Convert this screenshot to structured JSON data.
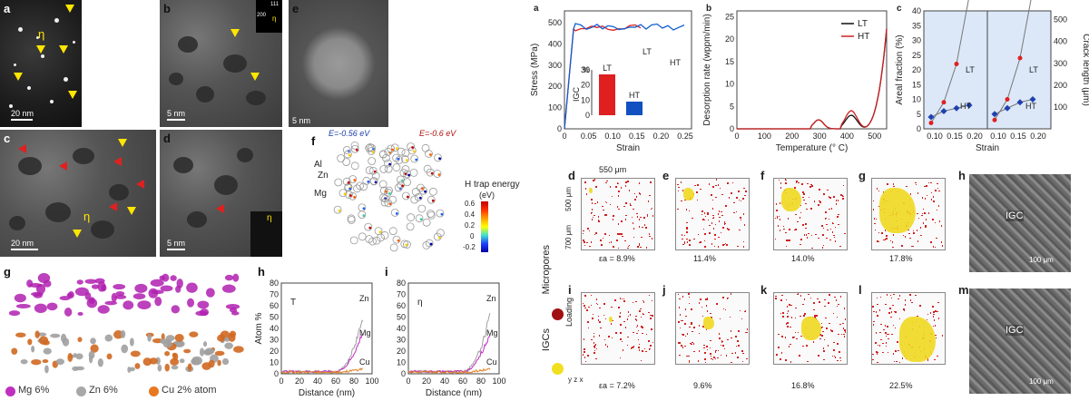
{
  "left": {
    "panels": {
      "a": "a",
      "b": "b",
      "c": "c",
      "d": "d",
      "e": "e",
      "f": "f",
      "g": "g",
      "h": "h",
      "i": "i"
    },
    "scale": {
      "a": "20 nm",
      "b": "5 nm",
      "c": "20 nm",
      "d": "5 nm",
      "e": "5 nm"
    },
    "eta": "η",
    "tau": "T",
    "diff_b": {
      "a": "200",
      "b": "111",
      "c": "111"
    },
    "f_energy": {
      "low": "E=-0.56 eV",
      "high": "E=-0.6 eV",
      "label": "H trap energy",
      "unit": "(eV)",
      "ticks": [
        "0.6",
        "0.4",
        "0.2",
        "0",
        "-0.2"
      ]
    },
    "f_atoms": [
      "Al",
      "Zn",
      "Mg"
    ],
    "g_legend": [
      "Mg 6%",
      "Zn 6%",
      "Cu 2% atom"
    ],
    "h_plot": {
      "title": "T",
      "ylabel": "Atom %",
      "xlabel": "Distance (nm)",
      "yticks": [
        "0",
        "10",
        "20",
        "30",
        "40",
        "50",
        "60",
        "70",
        "80"
      ],
      "xticks": [
        "0",
        "20",
        "40",
        "60",
        "80",
        "100"
      ],
      "labels": [
        "Zn",
        "Mg",
        "Cu"
      ]
    },
    "i_plot": {
      "title": "η",
      "xlabel": "Distance (nm)",
      "yticks": [
        "0",
        "10",
        "20",
        "30",
        "40",
        "50",
        "60",
        "70",
        "80"
      ],
      "xticks": [
        "0",
        "20",
        "40",
        "60",
        "80",
        "100"
      ],
      "labels": [
        "Zn",
        "Mg",
        "Cu"
      ]
    }
  },
  "right": {
    "panel_a": {
      "label": "a",
      "ylabel": "Stress (MPa)",
      "xlabel": "Strain",
      "yticks": [
        "0",
        "100",
        "200",
        "300",
        "400",
        "500"
      ],
      "xticks": [
        "0",
        "0.05",
        "0.10",
        "0.15",
        "0.20",
        "0.25"
      ],
      "curve_labels": [
        "LT",
        "HT"
      ],
      "inset": {
        "unit": "%",
        "ylabel": "IGC",
        "yticks": [
          "0",
          "10",
          "20",
          "30"
        ],
        "bars": [
          {
            "name": "LT",
            "value": 27
          },
          {
            "name": "HT",
            "value": 9
          }
        ]
      }
    },
    "panel_b": {
      "label": "b",
      "ylabel": "Desorption rate (wppm/min)",
      "xlabel": "Temperature (° C)",
      "yticks": [
        "0",
        "5",
        "10",
        "15",
        "20",
        "25"
      ],
      "xticks": [
        "0",
        "100",
        "200",
        "300",
        "400",
        "500"
      ],
      "legend": [
        "LT",
        "HT"
      ]
    },
    "panel_c": {
      "label": "c",
      "ylabel": "Areal fraction (%)",
      "ylabel2": "Crack length (μm)",
      "xlabel": "Strain",
      "yticks": [
        "0",
        "5",
        "10",
        "15",
        "20",
        "25",
        "30",
        "35",
        "40"
      ],
      "yticks2": [
        "100",
        "200",
        "300",
        "400",
        "500"
      ],
      "xticks": [
        "0.10",
        "0.15",
        "0.20"
      ],
      "labels": [
        "LT",
        "HT"
      ]
    },
    "row1": {
      "labels": [
        "d",
        "e",
        "f",
        "g",
        "h"
      ],
      "strains": [
        "εa = 8.9%",
        "11.4%",
        "14.0%",
        "17.8%"
      ],
      "dims": [
        "550 μm",
        "500 μm",
        "700 μm"
      ],
      "sem_label": "IGC",
      "sem_scale": "100 μm"
    },
    "row2": {
      "labels": [
        "i",
        "j",
        "k",
        "l",
        "m"
      ],
      "strains": [
        "εa = 7.2%",
        "9.6%",
        "16.8%",
        "22.5%"
      ],
      "load": "Loading",
      "sem_label": "IGC",
      "sem_scale": "100 μm"
    },
    "legend": {
      "micropores": "Micropores",
      "igcs": "IGCs"
    },
    "axes_xyz": {
      "x": "x",
      "y": "y",
      "z": "z"
    }
  }
}
